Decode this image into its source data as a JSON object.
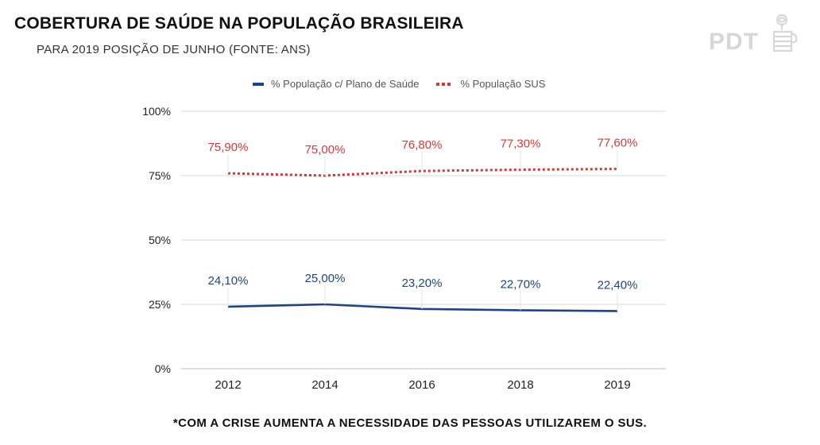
{
  "header": {
    "title": "COBERTURA DE SAÚDE NA POPULAÇÃO BRASILEIRA",
    "subtitle": "PARA 2019 POSIÇÃO DE JUNHO (FONTE: ANS)"
  },
  "logo": {
    "text": "PDT",
    "icon": "fist-rose-icon"
  },
  "footnote": "*COM A CRISE AUMENTA A NECESSIDADE DAS PESSOAS UTILIZAREM O SUS.",
  "chart_data": {
    "type": "line",
    "title": "COBERTURA DE SAÚDE NA POPULAÇÃO BRASILEIRA",
    "subtitle": "PARA 2019 POSIÇÃO DE JUNHO (FONTE: ANS)",
    "xlabel": "",
    "ylabel": "",
    "categories": [
      "2012",
      "2014",
      "2016",
      "2018",
      "2019"
    ],
    "ylim": [
      0,
      100
    ],
    "yticks": [
      0,
      25,
      50,
      75,
      100
    ],
    "ytick_labels": [
      "0%",
      "25%",
      "50%",
      "75%",
      "100%"
    ],
    "grid": true,
    "legend_position": "top",
    "series": [
      {
        "name": "% População c/ Plano de Saúde",
        "values": [
          24.1,
          25.0,
          23.2,
          22.7,
          22.4
        ],
        "labels": [
          "24,10%",
          "25,00%",
          "23,20%",
          "22,70%",
          "22,40%"
        ],
        "color": "#22447e",
        "style": "solid"
      },
      {
        "name": "% População SUS",
        "values": [
          75.9,
          75.0,
          76.8,
          77.3,
          77.6
        ],
        "labels": [
          "75,90%",
          "75,00%",
          "76,80%",
          "77,30%",
          "77,60%"
        ],
        "color": "#d23a3a",
        "style": "dotted"
      }
    ]
  }
}
